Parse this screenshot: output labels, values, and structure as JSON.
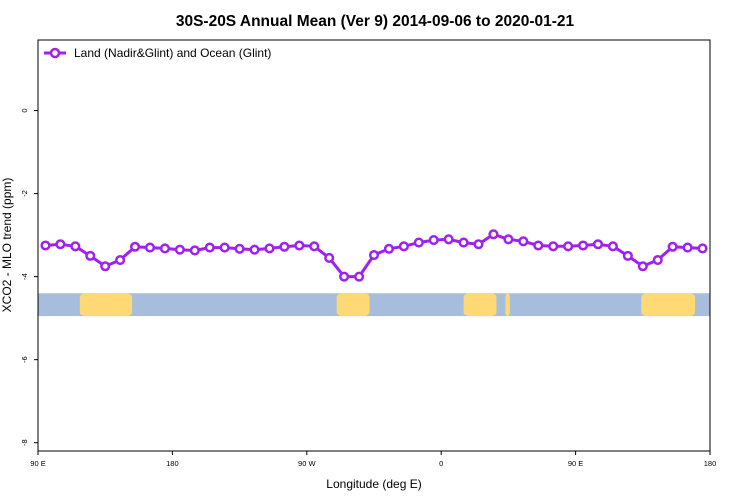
{
  "chart_data": {
    "type": "line",
    "title": "30S-20S Annual Mean (Ver 9)   2014-09-06 to 2020-01-21",
    "xlabel": "Longitude (deg E)",
    "ylabel": "XCO2 - MLO trend (ppm)",
    "x_ticks": [
      {
        "value": 90,
        "label": "90 E"
      },
      {
        "value": 180,
        "label": "180"
      },
      {
        "value": 270,
        "label": "90 W"
      },
      {
        "value": 360,
        "label": "0"
      },
      {
        "value": 450,
        "label": "90 E"
      },
      {
        "value": 540,
        "label": "180"
      }
    ],
    "y_ticks": [
      {
        "value": 0,
        "label": "0"
      },
      {
        "value": -2,
        "label": "-2"
      },
      {
        "value": -4,
        "label": "-4"
      },
      {
        "value": -6,
        "label": "-6"
      },
      {
        "value": -8,
        "label": "-8"
      }
    ],
    "xlim": [
      90,
      540
    ],
    "ylim": [
      -8.2,
      1.7
    ],
    "legend": {
      "position": "top-left"
    },
    "series": [
      {
        "name": "Land (Nadir&Glint) and Ocean (Glint)",
        "color": "#A020F0",
        "x": [
          95,
          105,
          115,
          125,
          135,
          145,
          155,
          165,
          175,
          185,
          195,
          205,
          215,
          225,
          235,
          245,
          255,
          265,
          275,
          285,
          295,
          305,
          315,
          325,
          335,
          345,
          355,
          365,
          375,
          385,
          395,
          405,
          415,
          425,
          435,
          445,
          455,
          465,
          475,
          485,
          495,
          505,
          515,
          525,
          535
        ],
        "y": [
          -3.25,
          -3.22,
          -3.27,
          -3.5,
          -3.75,
          -3.6,
          -3.28,
          -3.3,
          -3.32,
          -3.35,
          -3.37,
          -3.3,
          -3.3,
          -3.33,
          -3.35,
          -3.32,
          -3.28,
          -3.25,
          -3.27,
          -3.55,
          -4.0,
          -4.0,
          -3.48,
          -3.33,
          -3.27,
          -3.18,
          -3.12,
          -3.1,
          -3.18,
          -3.22,
          -2.98,
          -3.1,
          -3.15,
          -3.25,
          -3.27,
          -3.27,
          -3.25,
          -3.22,
          -3.27,
          -3.5,
          -3.75,
          -3.6,
          -3.28,
          -3.3,
          -3.32
        ]
      }
    ],
    "land_band": {
      "y_range": [
        -4.95,
        -4.4
      ],
      "ocean_color": "#A6BDDB",
      "land_color": "#FED976",
      "land_segments": [
        [
          118,
          153
        ],
        [
          290,
          312
        ],
        [
          375,
          397
        ],
        [
          403,
          406
        ],
        [
          494,
          530
        ]
      ]
    }
  }
}
